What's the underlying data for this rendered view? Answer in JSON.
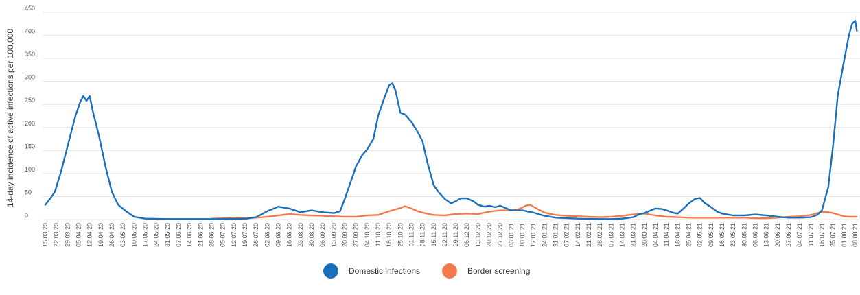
{
  "chart_data": {
    "type": "line",
    "ylabel": "14-day incidence of active infections per 100,000",
    "ylim": [
      0,
      450
    ],
    "yticks": [
      0,
      50,
      100,
      150,
      200,
      250,
      300,
      350,
      400,
      450
    ],
    "grid": "horizontal",
    "legend_position": "bottom-center",
    "x_range": [
      "15.03.20",
      "08.08.21"
    ],
    "x_tick_labels": [
      "15.03.20",
      "22.03.20",
      "29.03.20",
      "05.04.20",
      "12.04.20",
      "19.04.20",
      "26.04.20",
      "03.05.20",
      "10.05.20",
      "17.05.20",
      "24.05.20",
      "31.05.20",
      "07.06.20",
      "14.06.20",
      "21.06.20",
      "28.06.20",
      "05.07.20",
      "12.07.20",
      "19.07.20",
      "26.07.20",
      "02.08.20",
      "09.08.20",
      "16.08.20",
      "23.08.20",
      "30.08.20",
      "06.09.20",
      "13.09.20",
      "20.09.20",
      "27.09.20",
      "04.10.20",
      "11.10.20",
      "18.10.20",
      "25.10.20",
      "01.11.20",
      "08.11.20",
      "15.11.20",
      "22.11.20",
      "29.11.20",
      "06.12.20",
      "13.12.20",
      "20.12.20",
      "27.12.20",
      "03.01.21",
      "10.01.21",
      "17.01.21",
      "24.01.21",
      "31.01.21",
      "07.02.21",
      "14.02.21",
      "21.02.21",
      "28.02.21",
      "07.03.21",
      "14.03.21",
      "21.03.21",
      "28.03.21",
      "04.04.21",
      "11.04.21",
      "18.04.21",
      "25.04.21",
      "02.05.21",
      "09.05.21",
      "16.05.21",
      "23.05.21",
      "30.05.21",
      "06.06.21",
      "13.06.21",
      "20.06.21",
      "27.06.21",
      "04.07.21",
      "11.07.21",
      "18.07.21",
      "25.07.21",
      "01.08.21",
      "08.08.21"
    ],
    "series": [
      {
        "name": "Domestic infections",
        "color": "#1a6fba",
        "points": [
          [
            "15.03.20",
            32
          ],
          [
            "18.03.20",
            45
          ],
          [
            "21.03.20",
            60
          ],
          [
            "25.03.20",
            105
          ],
          [
            "28.03.20",
            145
          ],
          [
            "31.03.20",
            185
          ],
          [
            "03.04.20",
            225
          ],
          [
            "06.04.20",
            255
          ],
          [
            "08.04.20",
            268
          ],
          [
            "10.04.20",
            258
          ],
          [
            "12.04.20",
            268
          ],
          [
            "14.04.20",
            235
          ],
          [
            "18.04.20",
            180
          ],
          [
            "22.04.20",
            115
          ],
          [
            "26.04.20",
            60
          ],
          [
            "30.04.20",
            32
          ],
          [
            "05.05.20",
            18
          ],
          [
            "10.05.20",
            6
          ],
          [
            "17.05.20",
            2
          ],
          [
            "01.06.20",
            1
          ],
          [
            "01.07.20",
            1
          ],
          [
            "20.07.20",
            2
          ],
          [
            "26.07.20",
            5
          ],
          [
            "02.08.20",
            18
          ],
          [
            "09.08.20",
            28
          ],
          [
            "16.08.20",
            24
          ],
          [
            "23.08.20",
            16
          ],
          [
            "30.08.20",
            20
          ],
          [
            "06.09.20",
            16
          ],
          [
            "13.09.20",
            14
          ],
          [
            "17.09.20",
            18
          ],
          [
            "20.09.20",
            45
          ],
          [
            "24.09.20",
            85
          ],
          [
            "27.09.20",
            115
          ],
          [
            "01.10.20",
            140
          ],
          [
            "04.10.20",
            152
          ],
          [
            "08.10.20",
            175
          ],
          [
            "11.10.20",
            225
          ],
          [
            "15.10.20",
            265
          ],
          [
            "18.10.20",
            292
          ],
          [
            "20.10.20",
            296
          ],
          [
            "22.10.20",
            280
          ],
          [
            "25.10.20",
            232
          ],
          [
            "28.10.20",
            228
          ],
          [
            "01.11.20",
            212
          ],
          [
            "05.11.20",
            190
          ],
          [
            "08.11.20",
            170
          ],
          [
            "11.11.20",
            125
          ],
          [
            "15.11.20",
            75
          ],
          [
            "18.11.20",
            60
          ],
          [
            "22.11.20",
            45
          ],
          [
            "26.11.20",
            35
          ],
          [
            "29.11.20",
            40
          ],
          [
            "02.12.20",
            46
          ],
          [
            "06.12.20",
            46
          ],
          [
            "10.12.20",
            40
          ],
          [
            "13.12.20",
            32
          ],
          [
            "17.12.20",
            28
          ],
          [
            "20.12.20",
            30
          ],
          [
            "24.12.20",
            27
          ],
          [
            "27.12.20",
            30
          ],
          [
            "03.01.21",
            20
          ],
          [
            "10.01.21",
            20
          ],
          [
            "17.01.21",
            15
          ],
          [
            "24.01.21",
            8
          ],
          [
            "31.01.21",
            4
          ],
          [
            "14.02.21",
            2
          ],
          [
            "28.02.21",
            1
          ],
          [
            "07.03.21",
            1
          ],
          [
            "14.03.21",
            2
          ],
          [
            "21.03.21",
            5
          ],
          [
            "25.03.21",
            12
          ],
          [
            "28.03.21",
            14
          ],
          [
            "01.04.21",
            20
          ],
          [
            "04.04.21",
            24
          ],
          [
            "08.04.21",
            23
          ],
          [
            "11.04.21",
            20
          ],
          [
            "15.04.21",
            15
          ],
          [
            "18.04.21",
            13
          ],
          [
            "22.04.21",
            25
          ],
          [
            "25.04.21",
            35
          ],
          [
            "29.04.21",
            45
          ],
          [
            "02.05.21",
            47
          ],
          [
            "05.05.21",
            36
          ],
          [
            "09.05.21",
            27
          ],
          [
            "13.05.21",
            17
          ],
          [
            "16.05.21",
            13
          ],
          [
            "23.05.21",
            9
          ],
          [
            "30.05.21",
            9
          ],
          [
            "06.06.21",
            11
          ],
          [
            "13.06.21",
            9
          ],
          [
            "20.06.21",
            6
          ],
          [
            "27.06.21",
            4
          ],
          [
            "04.07.21",
            4
          ],
          [
            "11.07.21",
            5
          ],
          [
            "15.07.21",
            10
          ],
          [
            "18.07.21",
            20
          ],
          [
            "22.07.21",
            70
          ],
          [
            "25.07.21",
            160
          ],
          [
            "28.07.21",
            270
          ],
          [
            "01.08.21",
            345
          ],
          [
            "04.08.21",
            400
          ],
          [
            "06.08.21",
            425
          ],
          [
            "08.08.21",
            432
          ],
          [
            "09.08.21",
            410
          ]
        ]
      },
      {
        "name": "Border screening",
        "color": "#f47a4d",
        "points": [
          [
            "28.06.20",
            2
          ],
          [
            "05.07.20",
            3
          ],
          [
            "12.07.20",
            4
          ],
          [
            "19.07.20",
            3
          ],
          [
            "26.07.20",
            4
          ],
          [
            "02.08.20",
            6
          ],
          [
            "09.08.20",
            9
          ],
          [
            "16.08.20",
            12
          ],
          [
            "23.08.20",
            10
          ],
          [
            "30.08.20",
            9
          ],
          [
            "06.09.20",
            8
          ],
          [
            "13.09.20",
            7
          ],
          [
            "20.09.20",
            6
          ],
          [
            "27.09.20",
            6
          ],
          [
            "04.10.20",
            9
          ],
          [
            "11.10.20",
            10
          ],
          [
            "18.10.20",
            18
          ],
          [
            "22.10.20",
            22
          ],
          [
            "25.10.20",
            25
          ],
          [
            "28.10.20",
            29
          ],
          [
            "01.11.20",
            24
          ],
          [
            "05.11.20",
            18
          ],
          [
            "08.11.20",
            15
          ],
          [
            "15.11.20",
            10
          ],
          [
            "22.11.20",
            9
          ],
          [
            "29.11.20",
            12
          ],
          [
            "06.12.20",
            13
          ],
          [
            "13.12.20",
            12
          ],
          [
            "20.12.20",
            17
          ],
          [
            "27.12.20",
            20
          ],
          [
            "03.01.21",
            20
          ],
          [
            "08.01.21",
            23
          ],
          [
            "12.01.21",
            30
          ],
          [
            "15.01.21",
            32
          ],
          [
            "18.01.21",
            26
          ],
          [
            "24.01.21",
            15
          ],
          [
            "31.01.21",
            10
          ],
          [
            "07.02.21",
            8
          ],
          [
            "14.02.21",
            7
          ],
          [
            "21.02.21",
            6
          ],
          [
            "28.02.21",
            5
          ],
          [
            "07.03.21",
            6
          ],
          [
            "14.03.21",
            8
          ],
          [
            "21.03.21",
            11
          ],
          [
            "28.03.21",
            13
          ],
          [
            "04.04.21",
            9
          ],
          [
            "11.04.21",
            6
          ],
          [
            "18.04.21",
            5
          ],
          [
            "25.04.21",
            4
          ],
          [
            "02.05.21",
            4
          ],
          [
            "09.05.21",
            4
          ],
          [
            "16.05.21",
            4
          ],
          [
            "23.05.21",
            4
          ],
          [
            "30.05.21",
            4
          ],
          [
            "06.06.21",
            3
          ],
          [
            "13.06.21",
            3
          ],
          [
            "20.06.21",
            4
          ],
          [
            "27.06.21",
            6
          ],
          [
            "04.07.21",
            7
          ],
          [
            "11.07.21",
            10
          ],
          [
            "15.07.21",
            14
          ],
          [
            "18.07.21",
            17
          ],
          [
            "22.07.21",
            16
          ],
          [
            "25.07.21",
            14
          ],
          [
            "29.07.21",
            10
          ],
          [
            "01.08.21",
            7
          ],
          [
            "05.08.21",
            6
          ],
          [
            "09.08.21",
            6
          ]
        ]
      }
    ]
  }
}
